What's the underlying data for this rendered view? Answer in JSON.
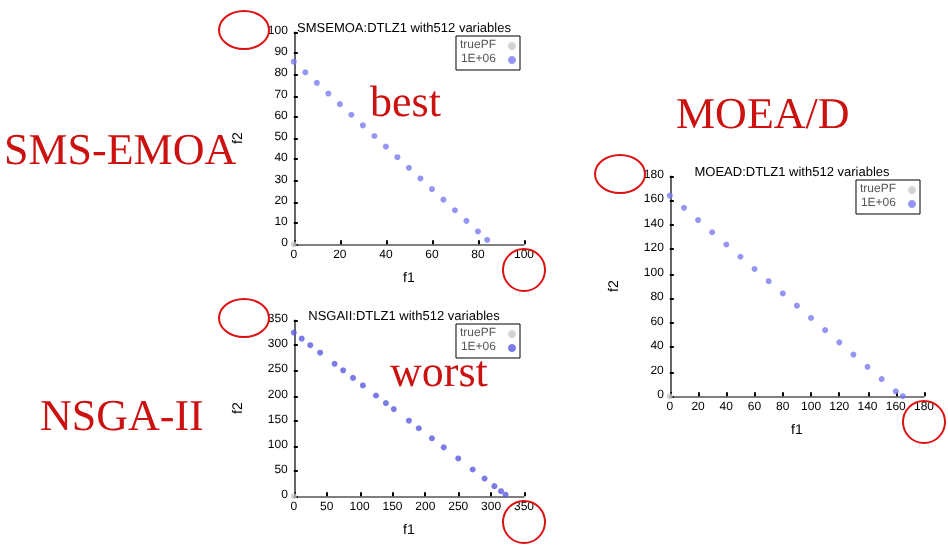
{
  "chart_data": [
    {
      "type": "scatter",
      "title": "SMSEMOA:DTLZ1 with512 variables",
      "xlabel": "f1",
      "ylabel": "f2",
      "annotations": [
        "SMS-EMOA",
        "best"
      ],
      "legend": "top right",
      "grid": false,
      "marker": "circle",
      "xlim": [
        0,
        100
      ],
      "ylim": [
        0,
        100
      ],
      "xticks": [
        0,
        20,
        40,
        60,
        80,
        100
      ],
      "yticks": [
        0,
        10,
        20,
        30,
        40,
        50,
        60,
        70,
        80,
        90,
        100
      ],
      "series": [
        {
          "name": "truePF",
          "color": "#c8c8c8",
          "x": [
            0
          ],
          "values": [
            0
          ]
        },
        {
          "name": "1E+06",
          "color": "#7b7bf0",
          "x": [
            0,
            5,
            10,
            15,
            20,
            25,
            30,
            35,
            40,
            45,
            50,
            55,
            60,
            65,
            70,
            75,
            80,
            84
          ],
          "values": [
            86,
            81,
            76,
            71,
            66,
            61,
            56,
            51,
            46,
            41,
            36,
            31,
            26,
            21,
            16,
            11,
            6,
            2
          ]
        }
      ]
    },
    {
      "type": "scatter",
      "title": "NSGAII:DTLZ1 with512 variables",
      "xlabel": "f1",
      "ylabel": "f2",
      "annotations": [
        "NSGA-II",
        "worst"
      ],
      "legend": "top right",
      "grid": false,
      "marker": "circle",
      "xlim": [
        0,
        350
      ],
      "ylim": [
        0,
        350
      ],
      "xticks": [
        0,
        50,
        100,
        150,
        200,
        250,
        300,
        350
      ],
      "yticks": [
        0,
        50,
        100,
        150,
        200,
        250,
        300,
        350
      ],
      "series": [
        {
          "name": "truePF",
          "color": "#c8c8c8",
          "x": [
            0
          ],
          "values": [
            0
          ]
        },
        {
          "name": "1E+06",
          "color": "#5a5ae0",
          "x": [
            0,
            12,
            25,
            40,
            62,
            75,
            90,
            105,
            125,
            140,
            152,
            175,
            190,
            210,
            228,
            250,
            272,
            290,
            305,
            315,
            322
          ],
          "values": [
            325,
            313,
            300,
            285,
            263,
            250,
            235,
            220,
            200,
            185,
            173,
            150,
            135,
            115,
            97,
            75,
            53,
            35,
            20,
            10,
            3
          ]
        }
      ]
    },
    {
      "type": "scatter",
      "title": "MOEAD:DTLZ1 with512 variables",
      "xlabel": "f1",
      "ylabel": "f2",
      "annotations": [
        "MOEA/D"
      ],
      "legend": "top right",
      "grid": false,
      "marker": "circle",
      "xlim": [
        0,
        180
      ],
      "ylim": [
        0,
        180
      ],
      "xticks": [
        0,
        20,
        40,
        60,
        80,
        100,
        120,
        140,
        160,
        180
      ],
      "yticks": [
        0,
        20,
        40,
        60,
        80,
        100,
        120,
        140,
        160,
        180
      ],
      "series": [
        {
          "name": "truePF",
          "color": "#c8c8c8",
          "x": [
            0
          ],
          "values": [
            0
          ]
        },
        {
          "name": "1E+06",
          "color": "#7b7bf0",
          "x": [
            0,
            10,
            20,
            30,
            40,
            50,
            60,
            70,
            80,
            90,
            100,
            110,
            120,
            130,
            140,
            150,
            160,
            165
          ],
          "values": [
            164,
            154,
            144,
            134,
            124,
            114,
            104,
            94,
            84,
            74,
            64,
            54,
            44,
            34,
            24,
            14,
            4,
            0
          ]
        }
      ]
    }
  ]
}
